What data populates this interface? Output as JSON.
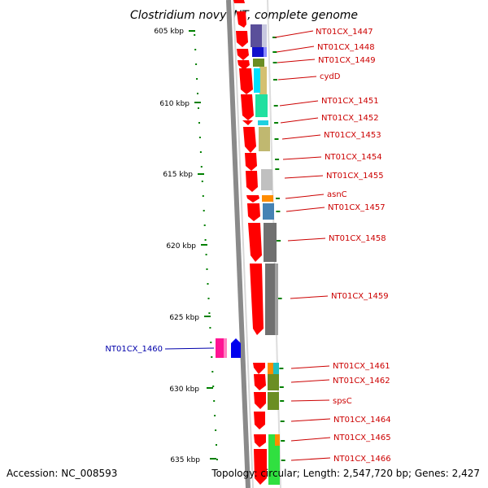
{
  "title": "Clostridium novyi NT, complete genome",
  "footer": {
    "accession": "Accession: NC_008593",
    "topology": "Topology: circular; Length: 2,547,720 bp; Genes: 2,427"
  },
  "scale_ticks": [
    {
      "label": "605 kbp"
    },
    {
      "label": "610 kbp"
    },
    {
      "label": "615 kbp"
    },
    {
      "label": "620 kbp"
    },
    {
      "label": "625 kbp"
    },
    {
      "label": "630 kbp"
    },
    {
      "label": "635 kbp"
    }
  ],
  "genes_right": [
    {
      "label": "NT01CX_1447",
      "color": "#5a4f9a"
    },
    {
      "label": "NT01CX_1448",
      "color": "#1010cc"
    },
    {
      "label": "NT01CX_1449",
      "color": "#6b8e23"
    },
    {
      "label": "cydD",
      "color": "#d4c070"
    },
    {
      "label": "NT01CX_1451",
      "color": "#20e0a0"
    },
    {
      "label": "NT01CX_1452",
      "color": "#20d0e0"
    },
    {
      "label": "NT01CX_1453",
      "color": "#c0b870"
    },
    {
      "label": "NT01CX_1454",
      "color": "#ffffff"
    },
    {
      "label": "NT01CX_1455",
      "color": "#c0c0c0"
    },
    {
      "label": "asnC",
      "color": "#ff8c00"
    },
    {
      "label": "NT01CX_1457",
      "color": "#4682b4"
    },
    {
      "label": "NT01CX_1458",
      "color": "#707070"
    },
    {
      "label": "NT01CX_1459",
      "color": "#707070"
    },
    {
      "label": "NT01CX_1461",
      "color": "#20c0c0"
    },
    {
      "label": "NT01CX_1462",
      "color": "#6b8e23"
    },
    {
      "label": "spsC",
      "color": "#6b8e23"
    },
    {
      "label": "NT01CX_1464",
      "color": "#ffffff"
    },
    {
      "label": "NT01CX_1465",
      "color": "#20c040"
    },
    {
      "label": "NT01CX_1466",
      "color": "#30e040"
    }
  ],
  "genes_left": [
    {
      "label": "NT01CX_1460",
      "color": "#ff1493"
    }
  ],
  "colors": {
    "gene_arrow": "#ff0000",
    "backbone": "#808080",
    "tick": "#008000",
    "reverse_arrow": "#0000ee"
  }
}
